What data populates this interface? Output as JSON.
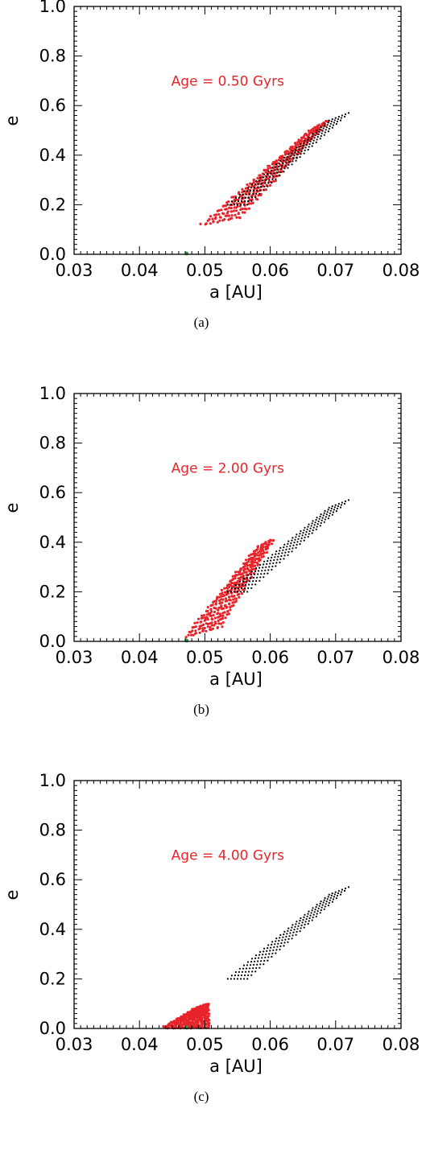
{
  "colors": {
    "initial": "#000000",
    "evolved": "#e8242a",
    "observed": "#2e9e4f",
    "axes": "#000000"
  },
  "panels": [
    {
      "caption": "(a)",
      "chart_data": {
        "type": "scatter",
        "annotation": "Age = 0.50 Gyrs",
        "xlabel": "a [AU]",
        "ylabel": "e",
        "xlim": [
          0.03,
          0.08
        ],
        "ylim": [
          0.0,
          1.0
        ],
        "xticks": [
          "0.03",
          "0.04",
          "0.05",
          "0.06",
          "0.07",
          "0.08"
        ],
        "yticks": [
          "0.0",
          "0.2",
          "0.4",
          "0.6",
          "0.8",
          "1.0"
        ],
        "grid": false,
        "initial_region": {
          "bottom_left": [
            0.0535,
            0.2
          ],
          "bottom_right": [
            0.0565,
            0.2
          ],
          "top_right": [
            0.072,
            0.57
          ],
          "top_left": [
            0.069,
            0.54
          ]
        },
        "evolved_region": {
          "bottom_left": [
            0.0495,
            0.12
          ],
          "bottom_right": [
            0.0555,
            0.15
          ],
          "top_right": [
            0.069,
            0.54
          ],
          "top_left": [
            0.066,
            0.5
          ]
        },
        "observed_planet": {
          "a": 0.0472,
          "e": 0.0
        }
      }
    },
    {
      "caption": "(b)",
      "chart_data": {
        "type": "scatter",
        "annotation": "Age = 2.00 Gyrs",
        "xlabel": "a [AU]",
        "ylabel": "e",
        "xlim": [
          0.03,
          0.08
        ],
        "ylim": [
          0.0,
          1.0
        ],
        "xticks": [
          "0.03",
          "0.04",
          "0.05",
          "0.06",
          "0.07",
          "0.08"
        ],
        "yticks": [
          "0.0",
          "0.2",
          "0.4",
          "0.6",
          "0.8",
          "1.0"
        ],
        "grid": false,
        "initial_region": {
          "bottom_left": [
            0.0535,
            0.2
          ],
          "bottom_right": [
            0.0565,
            0.2
          ],
          "top_right": [
            0.072,
            0.57
          ],
          "top_left": [
            0.069,
            0.54
          ]
        },
        "evolved_region": {
          "bottom_left": [
            0.047,
            0.02
          ],
          "bottom_right": [
            0.0525,
            0.06
          ],
          "top_right": [
            0.0605,
            0.41
          ],
          "top_left": [
            0.058,
            0.38
          ]
        },
        "observed_planet": {
          "a": 0.0472,
          "e": 0.0
        }
      }
    },
    {
      "caption": "(c)",
      "chart_data": {
        "type": "scatter",
        "annotation": "Age = 4.00 Gyrs",
        "xlabel": "a [AU]",
        "ylabel": "e",
        "xlim": [
          0.03,
          0.08
        ],
        "ylim": [
          0.0,
          1.0
        ],
        "xticks": [
          "0.03",
          "0.04",
          "0.05",
          "0.06",
          "0.07",
          "0.08"
        ],
        "yticks": [
          "0.0",
          "0.2",
          "0.4",
          "0.6",
          "0.8",
          "1.0"
        ],
        "grid": false,
        "initial_region": {
          "bottom_left": [
            0.0535,
            0.2
          ],
          "bottom_right": [
            0.0565,
            0.2
          ],
          "top_right": [
            0.072,
            0.57
          ],
          "top_left": [
            0.069,
            0.54
          ]
        },
        "evolved_region": {
          "bottom_left": [
            0.0435,
            0.0
          ],
          "bottom_right": [
            0.0505,
            0.0
          ],
          "top_right": [
            0.0505,
            0.1
          ],
          "top_left": [
            0.0485,
            0.08
          ]
        },
        "observed_planet": {
          "a": 0.0472,
          "e": 0.0
        }
      }
    }
  ]
}
